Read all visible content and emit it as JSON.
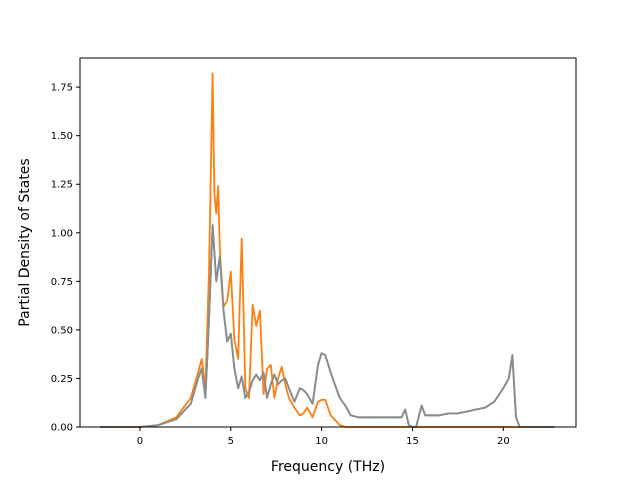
{
  "chart_data": {
    "type": "line",
    "title": "",
    "xlabel": "Frequency (THz)",
    "ylabel": "Partial Density of States",
    "xlim": [
      -3.3,
      24.0
    ],
    "ylim": [
      0.0,
      1.9
    ],
    "xticks": [
      0,
      5,
      10,
      15,
      20
    ],
    "yticks": [
      0.0,
      0.25,
      0.5,
      0.75,
      1.0,
      1.25,
      1.5,
      1.75
    ],
    "xtick_labels": [
      "0",
      "5",
      "10",
      "15",
      "20"
    ],
    "ytick_labels": [
      "0.00",
      "0.25",
      "0.50",
      "0.75",
      "1.00",
      "1.25",
      "1.50",
      "1.75"
    ],
    "grid": false,
    "legend": "none",
    "series": [
      {
        "color": "#1f77b4",
        "x": [
          -2.2,
          0.0,
          1.0,
          2.0,
          2.8,
          3.2,
          3.4,
          3.6,
          3.8,
          4.0,
          4.2,
          4.4,
          4.6,
          4.8,
          5.0,
          5.2,
          5.4,
          5.6,
          5.8,
          6.0,
          6.2,
          6.4,
          6.6,
          6.8,
          7.0,
          7.2,
          7.4,
          7.6,
          7.8,
          8.0,
          8.2,
          8.5,
          8.8,
          9.0,
          9.2,
          9.5,
          9.8,
          10.0,
          10.2,
          10.5,
          10.8,
          11.0,
          11.3,
          11.6,
          12.0,
          12.5,
          13.0,
          13.5,
          14.0,
          14.4,
          14.6,
          14.8,
          15.0,
          15.2,
          15.5,
          15.7,
          16.0,
          16.5,
          17.0,
          17.5,
          18.0,
          18.5,
          19.0,
          19.5,
          20.0,
          20.3,
          20.5,
          20.7,
          20.9,
          22.8
        ],
        "values": [
          0.0,
          0.0,
          0.01,
          0.04,
          0.12,
          0.25,
          0.3,
          0.15,
          0.55,
          1.04,
          0.75,
          0.88,
          0.6,
          0.44,
          0.48,
          0.3,
          0.2,
          0.26,
          0.15,
          0.18,
          0.24,
          0.27,
          0.24,
          0.28,
          0.15,
          0.22,
          0.27,
          0.22,
          0.24,
          0.25,
          0.2,
          0.13,
          0.2,
          0.19,
          0.17,
          0.12,
          0.32,
          0.38,
          0.37,
          0.28,
          0.2,
          0.15,
          0.11,
          0.06,
          0.05,
          0.05,
          0.05,
          0.05,
          0.05,
          0.05,
          0.09,
          0.01,
          0.0,
          0.0,
          0.11,
          0.06,
          0.06,
          0.06,
          0.07,
          0.07,
          0.08,
          0.09,
          0.1,
          0.13,
          0.2,
          0.25,
          0.37,
          0.05,
          0.0,
          0.0
        ]
      },
      {
        "color": "#ff7f0e",
        "x": [
          -2.2,
          0.0,
          1.0,
          2.0,
          2.8,
          3.2,
          3.4,
          3.6,
          3.8,
          4.0,
          4.1,
          4.2,
          4.3,
          4.4,
          4.6,
          4.8,
          5.0,
          5.2,
          5.4,
          5.6,
          5.7,
          5.8,
          6.0,
          6.2,
          6.4,
          6.6,
          6.8,
          7.0,
          7.2,
          7.4,
          7.6,
          7.8,
          8.0,
          8.2,
          8.5,
          8.8,
          9.0,
          9.2,
          9.5,
          9.8,
          10.0,
          10.2,
          10.5,
          10.8,
          11.0,
          11.3,
          11.6,
          12.0,
          13.0,
          14.0,
          22.8
        ],
        "values": [
          0.0,
          0.0,
          0.01,
          0.05,
          0.15,
          0.28,
          0.35,
          0.2,
          0.8,
          1.82,
          1.2,
          1.1,
          1.24,
          0.9,
          0.62,
          0.65,
          0.8,
          0.45,
          0.35,
          0.97,
          0.6,
          0.2,
          0.15,
          0.63,
          0.52,
          0.6,
          0.17,
          0.3,
          0.32,
          0.15,
          0.25,
          0.31,
          0.22,
          0.15,
          0.1,
          0.06,
          0.07,
          0.1,
          0.05,
          0.13,
          0.14,
          0.14,
          0.06,
          0.03,
          0.01,
          0.0,
          0.0,
          0.0,
          0.0,
          0.0,
          0.0
        ]
      },
      {
        "color": "#8c8c8c",
        "x": [
          -2.2,
          0.0,
          1.0,
          2.0,
          2.8,
          3.2,
          3.4,
          3.6,
          3.8,
          4.0,
          4.2,
          4.4,
          4.6,
          4.8,
          5.0,
          5.2,
          5.4,
          5.6,
          5.8,
          6.0,
          6.2,
          6.4,
          6.6,
          6.8,
          7.0,
          7.2,
          7.4,
          7.6,
          7.8,
          8.0,
          8.2,
          8.5,
          8.8,
          9.0,
          9.2,
          9.5,
          9.8,
          10.0,
          10.2,
          10.5,
          10.8,
          11.0,
          11.3,
          11.6,
          12.0,
          12.5,
          13.0,
          13.5,
          14.0,
          14.4,
          14.6,
          14.8,
          15.0,
          15.2,
          15.5,
          15.7,
          16.0,
          16.5,
          17.0,
          17.5,
          18.0,
          18.5,
          19.0,
          19.5,
          20.0,
          20.3,
          20.5,
          20.7,
          20.9,
          22.8
        ],
        "values": [
          0.0,
          0.0,
          0.01,
          0.04,
          0.12,
          0.25,
          0.3,
          0.15,
          0.55,
          1.04,
          0.75,
          0.88,
          0.6,
          0.44,
          0.48,
          0.3,
          0.2,
          0.26,
          0.15,
          0.18,
          0.24,
          0.27,
          0.24,
          0.28,
          0.15,
          0.22,
          0.27,
          0.22,
          0.24,
          0.25,
          0.2,
          0.13,
          0.2,
          0.19,
          0.17,
          0.12,
          0.32,
          0.38,
          0.37,
          0.28,
          0.2,
          0.15,
          0.11,
          0.06,
          0.05,
          0.05,
          0.05,
          0.05,
          0.05,
          0.05,
          0.09,
          0.01,
          0.0,
          0.0,
          0.11,
          0.06,
          0.06,
          0.06,
          0.07,
          0.07,
          0.08,
          0.09,
          0.1,
          0.13,
          0.2,
          0.25,
          0.37,
          0.05,
          0.0,
          0.0
        ]
      }
    ]
  }
}
